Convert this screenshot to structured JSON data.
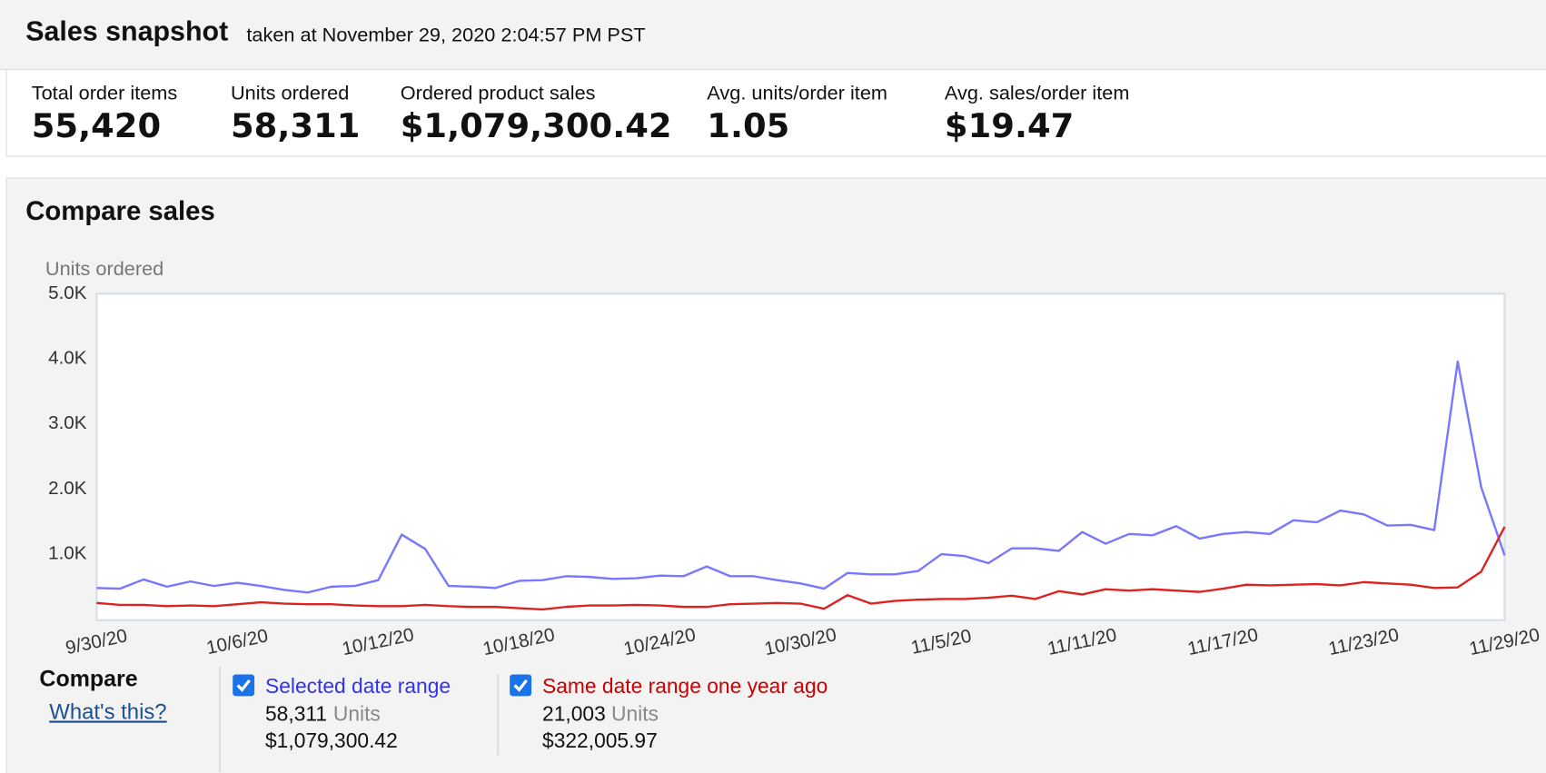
{
  "header": {
    "title": "Sales snapshot",
    "subtitle": "taken at November 29, 2020 2:04:57 PM PST"
  },
  "metrics": [
    {
      "label": "Total order items",
      "value": "55,420"
    },
    {
      "label": "Units ordered",
      "value": "58,311"
    },
    {
      "label": "Ordered product sales",
      "value": "$1,079,300.42"
    },
    {
      "label": "Avg. units/order item",
      "value": "1.05"
    },
    {
      "label": "Avg. sales/order item",
      "value": "$19.47"
    }
  ],
  "section_title": "Compare sales",
  "chart_data": {
    "type": "line",
    "y_label": "Units ordered",
    "categories": [
      "9/30/20",
      null,
      null,
      null,
      null,
      null,
      "10/6/20",
      null,
      null,
      null,
      null,
      null,
      "10/12/20",
      null,
      null,
      null,
      null,
      null,
      "10/18/20",
      null,
      null,
      null,
      null,
      null,
      "10/24/20",
      null,
      null,
      null,
      null,
      null,
      "10/30/20",
      null,
      null,
      null,
      null,
      null,
      "11/5/20",
      null,
      null,
      null,
      null,
      null,
      "11/11/20",
      null,
      null,
      null,
      null,
      null,
      "11/17/20",
      null,
      null,
      null,
      null,
      null,
      "11/23/20",
      null,
      null,
      null,
      null,
      null,
      "11/29/20"
    ],
    "ylim": [
      0,
      5000
    ],
    "yticks": [
      {
        "value": 1000,
        "label": "1.0K"
      },
      {
        "value": 2000,
        "label": "2.0K"
      },
      {
        "value": 3000,
        "label": "3.0K"
      },
      {
        "value": 4000,
        "label": "4.0K"
      },
      {
        "value": 5000,
        "label": "5.0K"
      }
    ],
    "grid": false,
    "series": [
      {
        "name": "Selected date range",
        "color": "#7777ff",
        "values": [
          480,
          470,
          610,
          500,
          580,
          510,
          560,
          510,
          450,
          410,
          500,
          510,
          600,
          1300,
          1080,
          510,
          500,
          480,
          590,
          600,
          660,
          650,
          620,
          630,
          670,
          660,
          810,
          660,
          660,
          600,
          550,
          470,
          710,
          690,
          690,
          740,
          1000,
          970,
          860,
          1090,
          1090,
          1050,
          1340,
          1160,
          1310,
          1290,
          1430,
          1240,
          1310,
          1340,
          1310,
          1520,
          1490,
          1670,
          1610,
          1440,
          1450,
          1370,
          3960,
          2030,
          980
        ]
      },
      {
        "name": "Same date range one year ago",
        "color": "#dd2222",
        "values": [
          250,
          220,
          220,
          200,
          210,
          200,
          230,
          260,
          240,
          230,
          230,
          210,
          200,
          200,
          220,
          200,
          190,
          190,
          170,
          150,
          190,
          210,
          210,
          220,
          210,
          190,
          190,
          230,
          240,
          250,
          240,
          160,
          370,
          240,
          280,
          300,
          310,
          310,
          330,
          360,
          310,
          430,
          380,
          460,
          440,
          460,
          440,
          420,
          470,
          530,
          520,
          530,
          540,
          520,
          570,
          550,
          530,
          480,
          490,
          730,
          1420
        ]
      }
    ]
  },
  "compare": {
    "title": "Compare",
    "link": "What's this?",
    "items": [
      {
        "units": "58,311",
        "units_label": "Units",
        "sales": "$1,079,300.42",
        "text_color": "#3333ee"
      },
      {
        "units": "21,003",
        "units_label": "Units",
        "sales": "$322,005.97",
        "text_color": "#cc0000"
      }
    ]
  }
}
